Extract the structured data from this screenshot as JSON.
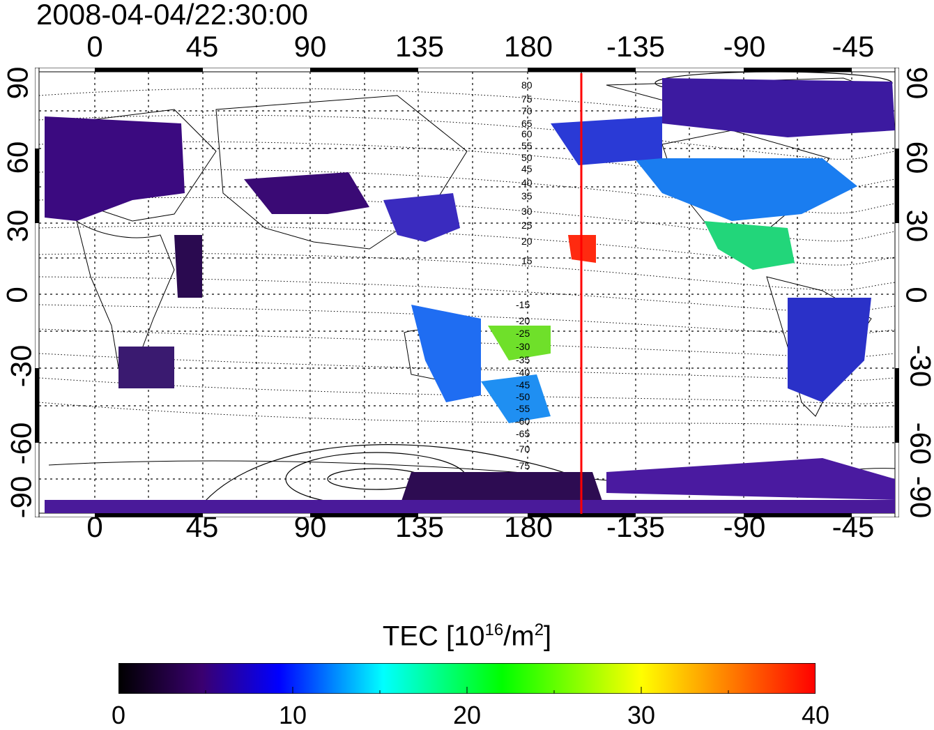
{
  "title": "2008-04-04/22:30:00",
  "longitude_ticks": [
    "0",
    "45",
    "90",
    "135",
    "180",
    "-135",
    "-90",
    "-45"
  ],
  "latitude_ticks": [
    "90",
    "60",
    "30",
    "0",
    "-30",
    "-60",
    "-90"
  ],
  "contour_labels_north": [
    "80",
    "75",
    "70",
    "65",
    "60",
    "55",
    "50",
    "45",
    "40",
    "35",
    "30",
    "25",
    "20",
    "15"
  ],
  "contour_labels_south": [
    "-15",
    "-20",
    "-25",
    "-30",
    "-35",
    "-40",
    "-45",
    "-50",
    "-55",
    "-60",
    "-65",
    "-70",
    "-75"
  ],
  "terminator_longitude": -157.5,
  "colorbar": {
    "title_main": "TEC  [10",
    "title_exp": "16",
    "title_unit": "/m",
    "title_exp2": "2",
    "title_end": "]",
    "min": 0,
    "max": 40,
    "labels": [
      "0",
      "10",
      "20",
      "30",
      "40"
    ],
    "colors": [
      "#000000",
      "#3a0070",
      "#0000ff",
      "#00ffff",
      "#00ff00",
      "#ffff00",
      "#ff0000"
    ]
  }
}
